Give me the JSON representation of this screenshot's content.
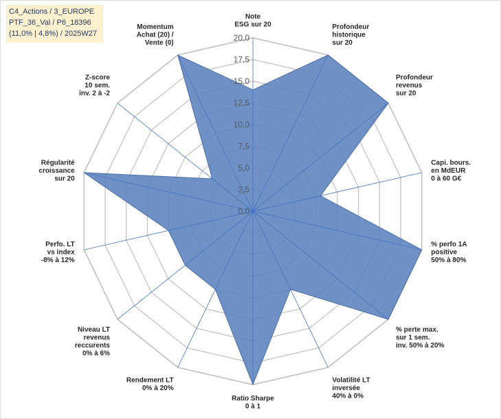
{
  "header": {
    "lines": [
      "C4_Actions / 3_EUROPE",
      "PTF_36_Val / P6_18396",
      "(11,0% | 4,8%) / 2025W27"
    ]
  },
  "colors": {
    "fill": "#5b82bd",
    "stroke": "#4a6fa5",
    "grid": "#bfbfbf",
    "spoke": "#4472c4",
    "info_bg": "#fdf1cf"
  },
  "chart_data": {
    "type": "radar",
    "ylim": [
      0,
      20
    ],
    "tick_labels": [
      "0,0",
      "2,5",
      "5,0",
      "7,5",
      "10,0",
      "12,5",
      "15,0",
      "17,5",
      "20,0"
    ],
    "categories": [
      {
        "lines": [
          "Note",
          "ESG sur 20"
        ]
      },
      {
        "lines": [
          "Profondeur",
          "historique",
          "sur 20"
        ]
      },
      {
        "lines": [
          "Profondeur",
          "revenus",
          "sur 20"
        ]
      },
      {
        "lines": [
          "Capi. bours.",
          "en MdEUR",
          "0 à 60 G€"
        ]
      },
      {
        "lines": [
          "% perfo 1A",
          "positive",
          "50% à 80%"
        ]
      },
      {
        "lines": [
          "% perte max.",
          "sur 1 sem.",
          "inv. 50% à 20%"
        ]
      },
      {
        "lines": [
          "Volatilité LT",
          "inversée",
          "40% à 0%"
        ]
      },
      {
        "lines": [
          "Ratio Sharpe",
          "0 à 1"
        ]
      },
      {
        "lines": [
          "Rendement LT",
          "0% à 20%"
        ]
      },
      {
        "lines": [
          "Niveau LT",
          "revenus",
          "reccurents",
          "0% à 6%"
        ]
      },
      {
        "lines": [
          "Perfo. LT",
          "vs index",
          "-8% à 12%"
        ]
      },
      {
        "lines": [
          "Régularité",
          "croissance",
          "sur 20"
        ]
      },
      {
        "lines": [
          "Z-score",
          "10 sem.",
          "inv. 2 à -2"
        ]
      },
      {
        "lines": [
          "Momentum",
          "Achat (20) /",
          "Vente (0)"
        ]
      }
    ],
    "series": [
      {
        "values": [
          14,
          20,
          20,
          8,
          20,
          20,
          10,
          20,
          10,
          10,
          10,
          20,
          6,
          20
        ]
      }
    ],
    "grid": true
  }
}
